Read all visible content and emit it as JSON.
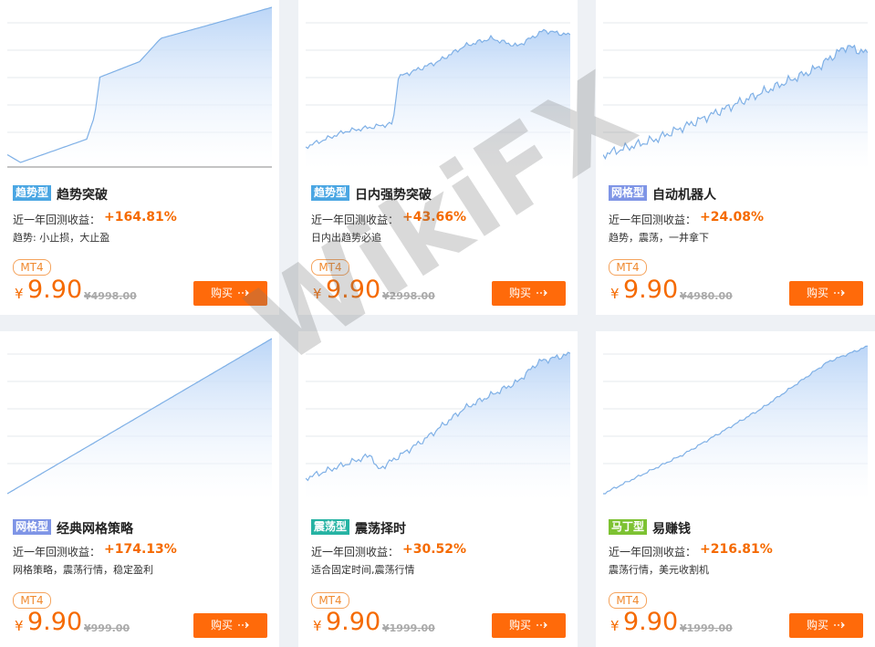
{
  "watermark": "WikiFX",
  "cards": [
    {
      "tag": "趋势型",
      "tag_color": "#4aa6e3",
      "title": "趋势突破",
      "return_label": "近一年回测收益：",
      "return": "+164.81%",
      "desc": "趋势: 小止损，大止盈",
      "platform": "MT4",
      "currency": "¥",
      "price": "9.90",
      "original_price": "¥4998.00",
      "button": "购买"
    },
    {
      "tag": "趋势型",
      "tag_color": "#4aa6e3",
      "title": "日内强势突破",
      "return_label": "近一年回测收益：",
      "return": "+43.66%",
      "desc": "日内出趋势必追",
      "platform": "MT4",
      "currency": "¥",
      "price": "9.90",
      "original_price": "¥2998.00",
      "button": "购买"
    },
    {
      "tag": "网格型",
      "tag_color": "#7f95e6",
      "title": "自动机器人",
      "return_label": "近一年回测收益：",
      "return": "+24.08%",
      "desc": "趋势，震荡，一井拿下",
      "platform": "MT4",
      "currency": "¥",
      "price": "9.90",
      "original_price": "¥4980.00",
      "button": "购买"
    },
    {
      "tag": "网格型",
      "tag_color": "#7f95e6",
      "title": "经典网格策略",
      "return_label": "近一年回测收益：",
      "return": "+174.13%",
      "desc": "网格策略，震荡行情，稳定盈利",
      "platform": "MT4",
      "currency": "¥",
      "price": "9.90",
      "original_price": "¥999.00",
      "button": "购买"
    },
    {
      "tag": "震荡型",
      "tag_color": "#26b3a3",
      "title": "震荡择时",
      "return_label": "近一年回测收益：",
      "return": "+30.52%",
      "desc": "适合固定时间,震荡行情",
      "platform": "MT4",
      "currency": "¥",
      "price": "9.90",
      "original_price": "¥1999.00",
      "button": "购买"
    },
    {
      "tag": "马丁型",
      "tag_color": "#7dc232",
      "title": "易赚钱",
      "return_label": "近一年回测收益：",
      "return": "+216.81%",
      "desc": "震荡行情，美元收割机",
      "platform": "MT4",
      "currency": "¥",
      "price": "9.90",
      "original_price": "¥1999.00",
      "button": "购买"
    }
  ]
}
